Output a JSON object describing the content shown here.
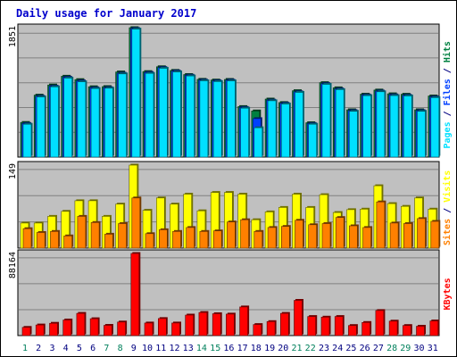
{
  "chart_data": {
    "type": "bar",
    "title": "Daily usage for January 2017",
    "colors": {
      "hits": "#008040",
      "files": "#0040FF",
      "pages": "#00E0FF",
      "visits": "#FFFF00",
      "sites": "#FF8000",
      "kbytes": "#FF0000",
      "weekend_label": "#00805C",
      "weekday_label": "#000080",
      "panel_bg": "#C0C0C0",
      "grid": "#808080"
    },
    "categories": [
      "1",
      "2",
      "3",
      "4",
      "5",
      "6",
      "7",
      "8",
      "9",
      "10",
      "11",
      "12",
      "13",
      "14",
      "15",
      "16",
      "17",
      "18",
      "19",
      "20",
      "21",
      "22",
      "23",
      "24",
      "25",
      "26",
      "27",
      "28",
      "29",
      "30",
      "31"
    ],
    "weekend_days": [
      "1",
      "7",
      "8",
      "14",
      "15",
      "21",
      "22",
      "28",
      "29"
    ],
    "panels": [
      {
        "name": "top",
        "ymax_label": "1851",
        "ylim": [
          0,
          1851
        ],
        "axis_label_parts": [
          {
            "text": "Pages",
            "color": "#00E0FF"
          },
          {
            "text": " / ",
            "color": "#000080"
          },
          {
            "text": "Files",
            "color": "#0040FF"
          },
          {
            "text": " / ",
            "color": "#000080"
          },
          {
            "text": "Hits",
            "color": "#008040"
          }
        ],
        "series": [
          {
            "name": "Hits",
            "key": "hits",
            "values": [
              495,
              886,
              1032,
              1157,
              1108,
              1006,
              1009,
              1218,
              1851,
              1223,
              1292,
              1240,
              1181,
              1112,
              1102,
              1111,
              722,
              660,
              830,
              780,
              950,
              492,
              1065,
              990,
              677,
              900,
              959,
              905,
              899,
              676,
              875
            ]
          },
          {
            "name": "Files",
            "key": "files",
            "values": [
              480,
              870,
              1015,
              1142,
              1090,
              990,
              995,
              1200,
              1840,
              1210,
              1280,
              1230,
              1170,
              1100,
              1090,
              1100,
              710,
              550,
              815,
              770,
              935,
              480,
              1050,
              975,
              665,
              888,
              945,
              890,
              885,
              665,
              860
            ]
          },
          {
            "name": "Pages",
            "key": "pages",
            "values": [
              470,
              860,
              1005,
              1130,
              1078,
              980,
              985,
              1190,
              1830,
              1198,
              1270,
              1218,
              1160,
              1092,
              1080,
              1090,
              700,
              420,
              805,
              760,
              925,
              470,
              1040,
              965,
              655,
              878,
              935,
              880,
              875,
              655,
              850
            ]
          }
        ]
      },
      {
        "name": "middle",
        "ymax_label": "149",
        "ylim": [
          0,
          149
        ],
        "axis_label_parts": [
          {
            "text": "Sites",
            "color": "#FF8000"
          },
          {
            "text": " / ",
            "color": "#000080"
          },
          {
            "text": "Visits",
            "color": "#FFFF00"
          }
        ],
        "series": [
          {
            "name": "Visits",
            "key": "visits",
            "values": [
              45,
              45,
              57,
              66,
              85,
              85,
              57,
              79,
              149,
              68,
              90,
              79,
              97,
              67,
              100,
              100,
              97,
              51,
              65,
              73,
              97,
              73,
              96,
              64,
              69,
              70,
              112,
              80,
              75,
              90,
              70
            ]
          },
          {
            "name": "Sites",
            "key": "sites",
            "values": [
              35,
              28,
              30,
              22,
              57,
              46,
              25,
              44,
              90,
              26,
              33,
              30,
              37,
              30,
              31,
              47,
              51,
              30,
              37,
              39,
              50,
              42,
              44,
              55,
              40,
              37,
              83,
              45,
              44,
              53,
              48
            ]
          }
        ]
      },
      {
        "name": "bottom",
        "ymax_label": "88164",
        "ylim": [
          0,
          88164
        ],
        "axis_label_parts": [
          {
            "text": "KBytes",
            "color": "#FF0000"
          }
        ],
        "series": [
          {
            "name": "KBytes",
            "key": "kbytes",
            "values": [
              8800,
              11400,
              13200,
              16800,
              23900,
              18100,
              11000,
              14600,
              88164,
              13500,
              18300,
              13500,
              22000,
              24800,
              23500,
              23100,
              30800,
              11900,
              15000,
              23900,
              37900,
              20500,
              19800,
              20500,
              10800,
              14100,
              26900,
              15500,
              10800,
              10100,
              15700
            ]
          }
        ]
      }
    ]
  }
}
